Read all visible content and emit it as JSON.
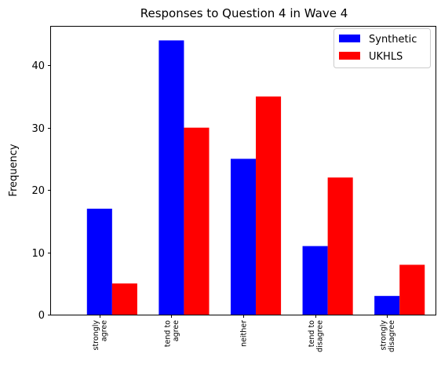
{
  "chart_data": {
    "type": "bar",
    "title": "Responses to Question 4 in Wave 4",
    "xlabel": "",
    "ylabel": "Frequency",
    "categories": [
      [
        "strongly",
        "agree"
      ],
      [
        "tend to",
        "agree"
      ],
      [
        "neither"
      ],
      [
        "tend to",
        "disagree"
      ],
      [
        "strongly",
        "disagree"
      ]
    ],
    "series": [
      {
        "name": "Synthetic",
        "color": "#0000ff",
        "values": [
          17,
          44,
          25,
          11,
          3
        ]
      },
      {
        "name": "UKHLS",
        "color": "#ff0000",
        "values": [
          5,
          30,
          35,
          22,
          8
        ]
      }
    ],
    "ylim": [
      0,
      46.2
    ],
    "yticks": [
      0,
      10,
      20,
      30,
      40
    ],
    "grid": false,
    "legend_position": "top-right"
  }
}
